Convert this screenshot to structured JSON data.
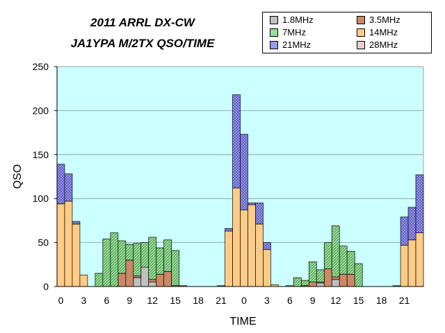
{
  "chart_data": {
    "type": "bar",
    "stacked": true,
    "title": "2011 ARRL DX-CW",
    "subtitle": "JA1YPA M/2TX  QSO/TIME",
    "xlabel": "TIME",
    "ylabel": "QSO",
    "ylim": [
      0,
      250
    ],
    "yticks": [
      0,
      50,
      100,
      150,
      200,
      250
    ],
    "grid": true,
    "legend_position": "top-right",
    "plot_background": "#ccffff",
    "categories": [
      "0",
      "1",
      "2",
      "3",
      "4",
      "5",
      "6",
      "7",
      "8",
      "9",
      "10",
      "11",
      "12",
      "13",
      "14",
      "15",
      "16",
      "17",
      "18",
      "19",
      "20",
      "21",
      "22",
      "23",
      "0",
      "1",
      "2",
      "3",
      "4",
      "5",
      "6",
      "7",
      "8",
      "9",
      "10",
      "11",
      "12",
      "13",
      "14",
      "15",
      "16",
      "17",
      "18",
      "19",
      "20",
      "21",
      "22",
      "23"
    ],
    "xtick_labels": [
      "0",
      "3",
      "6",
      "9",
      "12",
      "15",
      "18",
      "21",
      "0",
      "3",
      "6",
      "9",
      "12",
      "15",
      "18",
      "21"
    ],
    "series": [
      {
        "name": "1.8MHz",
        "color": "#c0c0c0",
        "values": [
          0,
          0,
          0,
          0,
          0,
          0,
          0,
          0,
          0,
          0,
          10,
          22,
          5,
          0,
          0,
          0,
          0,
          0,
          0,
          0,
          0,
          0,
          0,
          0,
          0,
          0,
          0,
          0,
          0,
          0,
          0,
          0,
          0,
          0,
          4,
          0,
          8,
          0,
          0,
          0,
          0,
          0,
          0,
          0,
          0,
          0,
          0,
          0
        ]
      },
      {
        "name": "3.5MHz",
        "color": "#cc8866",
        "values": [
          0,
          0,
          0,
          0,
          0,
          0,
          0,
          0,
          15,
          30,
          2,
          0,
          3,
          14,
          17,
          1,
          1,
          0,
          0,
          0,
          0,
          0,
          0,
          0,
          0,
          0,
          0,
          0,
          0,
          0,
          0,
          0,
          1,
          5,
          1,
          20,
          3,
          14,
          14,
          0,
          0,
          0,
          0,
          0,
          0,
          0,
          0,
          0
        ]
      },
      {
        "name": "7MHz",
        "color": "#99dd99",
        "values": [
          0,
          0,
          0,
          0,
          0,
          15,
          54,
          61,
          37,
          18,
          37,
          28,
          48,
          30,
          36,
          40,
          0,
          0,
          0,
          0,
          0,
          0,
          0,
          0,
          0,
          0,
          0,
          0,
          0,
          0,
          1,
          10,
          6,
          23,
          14,
          30,
          58,
          32,
          26,
          26,
          0,
          0,
          0,
          0,
          0,
          0,
          0,
          0
        ]
      },
      {
        "name": "14MHz",
        "color": "#ffcc88",
        "values": [
          94,
          97,
          71,
          13,
          0,
          0,
          0,
          0,
          0,
          0,
          0,
          0,
          0,
          0,
          0,
          0,
          0,
          0,
          0,
          0,
          0,
          0,
          63,
          112,
          87,
          93,
          71,
          42,
          2,
          0,
          0,
          0,
          0,
          0,
          0,
          0,
          0,
          0,
          0,
          0,
          0,
          0,
          0,
          0,
          0,
          47,
          53,
          61
        ]
      },
      {
        "name": "21MHz",
        "color": "#9999ee",
        "values": [
          45,
          31,
          3,
          0,
          0,
          0,
          0,
          0,
          0,
          0,
          0,
          0,
          0,
          0,
          0,
          0,
          0,
          0,
          0,
          0,
          0,
          1,
          3,
          106,
          86,
          2,
          24,
          8,
          0,
          0,
          0,
          0,
          0,
          0,
          0,
          0,
          0,
          0,
          0,
          0,
          0,
          0,
          0,
          0,
          1,
          32,
          37,
          66
        ]
      },
      {
        "name": "28MHz",
        "color": "#eecccc",
        "values": [
          0,
          0,
          0,
          0,
          0,
          0,
          0,
          0,
          0,
          0,
          0,
          0,
          0,
          0,
          0,
          0,
          0,
          0,
          0,
          0,
          0,
          0,
          0,
          0,
          0,
          0,
          0,
          0,
          0,
          0,
          0,
          0,
          0,
          0,
          0,
          0,
          0,
          0,
          0,
          0,
          0,
          0,
          0,
          0,
          0,
          0,
          0,
          0
        ]
      }
    ]
  },
  "legend": {
    "items": [
      {
        "label": "1.8MHz"
      },
      {
        "label": "3.5MHz"
      },
      {
        "label": "7MHz"
      },
      {
        "label": "14MHz"
      },
      {
        "label": "21MHz"
      },
      {
        "label": "28MHz"
      }
    ]
  }
}
